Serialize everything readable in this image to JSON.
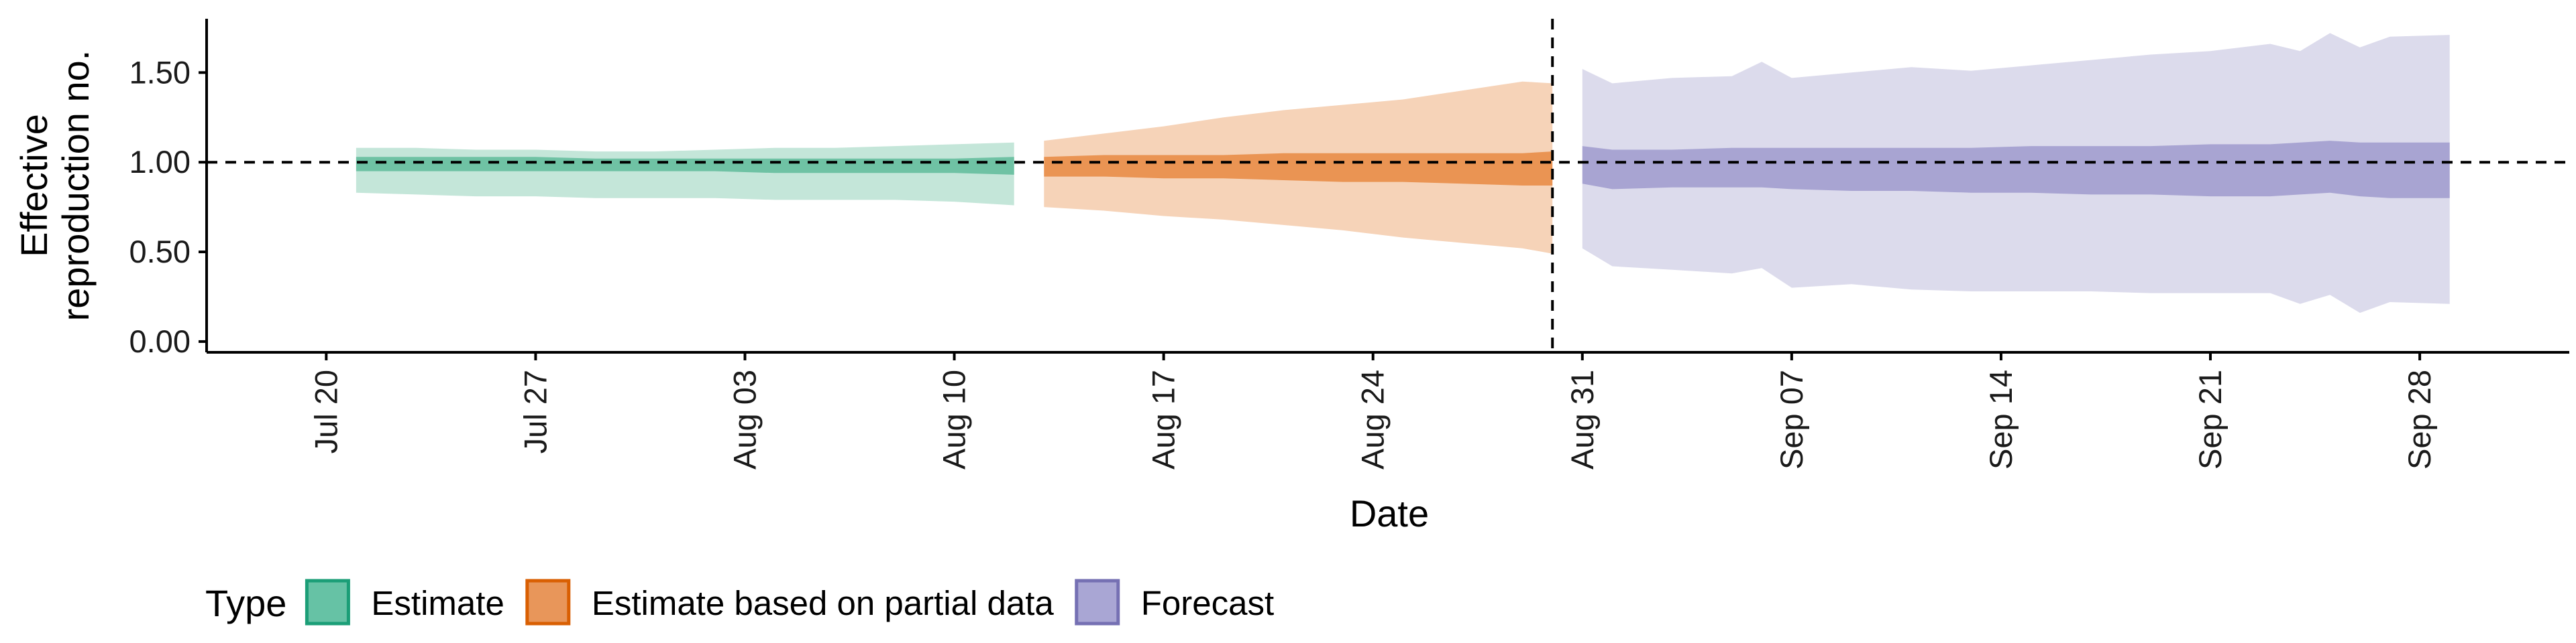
{
  "chart_data": {
    "type": "area",
    "title": "",
    "xlabel": "Date",
    "ylabel": [
      "Effective",
      "reproduction no."
    ],
    "x_type": "date",
    "year": 2020,
    "xlim": [
      "2020-07-16",
      "2020-10-03"
    ],
    "ylim": [
      -0.06,
      1.8
    ],
    "x_ticks": [
      {
        "date": "2020-07-20",
        "label": "Jul 20"
      },
      {
        "date": "2020-07-27",
        "label": "Jul 27"
      },
      {
        "date": "2020-08-03",
        "label": "Aug 03"
      },
      {
        "date": "2020-08-10",
        "label": "Aug 10"
      },
      {
        "date": "2020-08-17",
        "label": "Aug 17"
      },
      {
        "date": "2020-08-24",
        "label": "Aug 24"
      },
      {
        "date": "2020-08-31",
        "label": "Aug 31"
      },
      {
        "date": "2020-09-07",
        "label": "Sep 07"
      },
      {
        "date": "2020-09-14",
        "label": "Sep 14"
      },
      {
        "date": "2020-09-21",
        "label": "Sep 21"
      },
      {
        "date": "2020-09-28",
        "label": "Sep 28"
      }
    ],
    "y_ticks": [
      {
        "value": 0.0,
        "label": "0.00"
      },
      {
        "value": 0.5,
        "label": "0.50"
      },
      {
        "value": 1.0,
        "label": "1.00"
      },
      {
        "value": 1.5,
        "label": "1.50"
      }
    ],
    "reference_lines": {
      "horizontal_y": 1.0,
      "vertical_date": "2020-08-30",
      "style": "dashed"
    },
    "grid": false,
    "legend": {
      "title": "Type",
      "position": "bottom",
      "entries": [
        {
          "label": "Estimate",
          "fill": "#66c2a5",
          "border": "#1b9e77"
        },
        {
          "label": "Estimate based on partial data",
          "fill": "#e8965a",
          "border": "#d95f02"
        },
        {
          "label": "Forecast",
          "fill": "#a9a6d4",
          "border": "#7570b3"
        }
      ]
    },
    "series": [
      {
        "name": "Estimate",
        "outer_color": "#c4e6d9",
        "inner_color": "#6fc2a4",
        "points": [
          [
            "2020-07-21",
            0.83,
            1.08,
            0.95,
            1.03
          ],
          [
            "2020-07-23",
            0.82,
            1.08,
            0.95,
            1.03
          ],
          [
            "2020-07-25",
            0.81,
            1.07,
            0.95,
            1.03
          ],
          [
            "2020-07-27",
            0.81,
            1.07,
            0.95,
            1.03
          ],
          [
            "2020-07-29",
            0.8,
            1.06,
            0.95,
            1.02
          ],
          [
            "2020-07-31",
            0.8,
            1.06,
            0.95,
            1.02
          ],
          [
            "2020-08-02",
            0.8,
            1.07,
            0.95,
            1.02
          ],
          [
            "2020-08-04",
            0.79,
            1.08,
            0.94,
            1.02
          ],
          [
            "2020-08-06",
            0.79,
            1.08,
            0.94,
            1.02
          ],
          [
            "2020-08-08",
            0.79,
            1.09,
            0.94,
            1.02
          ],
          [
            "2020-08-10",
            0.78,
            1.1,
            0.94,
            1.02
          ],
          [
            "2020-08-12",
            0.76,
            1.11,
            0.93,
            1.03
          ]
        ]
      },
      {
        "name": "Estimate based on partial data",
        "outer_color": "#f6d3b8",
        "inner_color": "#ea9453",
        "points": [
          [
            "2020-08-13",
            0.75,
            1.12,
            0.92,
            1.03
          ],
          [
            "2020-08-15",
            0.73,
            1.16,
            0.92,
            1.04
          ],
          [
            "2020-08-17",
            0.7,
            1.2,
            0.91,
            1.04
          ],
          [
            "2020-08-19",
            0.68,
            1.25,
            0.91,
            1.04
          ],
          [
            "2020-08-21",
            0.65,
            1.29,
            0.9,
            1.05
          ],
          [
            "2020-08-23",
            0.62,
            1.32,
            0.89,
            1.05
          ],
          [
            "2020-08-25",
            0.58,
            1.35,
            0.89,
            1.05
          ],
          [
            "2020-08-27",
            0.55,
            1.4,
            0.88,
            1.05
          ],
          [
            "2020-08-29",
            0.52,
            1.45,
            0.87,
            1.05
          ],
          [
            "2020-08-30",
            0.49,
            1.44,
            0.87,
            1.06
          ]
        ]
      },
      {
        "name": "Forecast",
        "outer_color": "#dcdbec",
        "inner_color": "#a8a4d2",
        "points": [
          [
            "2020-08-31",
            0.52,
            1.52,
            0.88,
            1.09
          ],
          [
            "2020-09-01",
            0.42,
            1.44,
            0.85,
            1.07
          ],
          [
            "2020-09-03",
            0.4,
            1.47,
            0.86,
            1.07
          ],
          [
            "2020-09-05",
            0.38,
            1.48,
            0.86,
            1.08
          ],
          [
            "2020-09-06",
            0.41,
            1.56,
            0.86,
            1.08
          ],
          [
            "2020-09-07",
            0.3,
            1.47,
            0.85,
            1.08
          ],
          [
            "2020-09-09",
            0.32,
            1.5,
            0.84,
            1.08
          ],
          [
            "2020-09-11",
            0.29,
            1.53,
            0.84,
            1.08
          ],
          [
            "2020-09-13",
            0.28,
            1.51,
            0.83,
            1.08
          ],
          [
            "2020-09-15",
            0.28,
            1.54,
            0.83,
            1.09
          ],
          [
            "2020-09-17",
            0.28,
            1.57,
            0.82,
            1.09
          ],
          [
            "2020-09-19",
            0.27,
            1.6,
            0.82,
            1.09
          ],
          [
            "2020-09-21",
            0.27,
            1.62,
            0.81,
            1.1
          ],
          [
            "2020-09-23",
            0.27,
            1.66,
            0.81,
            1.1
          ],
          [
            "2020-09-24",
            0.21,
            1.62,
            0.82,
            1.11
          ],
          [
            "2020-09-25",
            0.26,
            1.72,
            0.83,
            1.12
          ],
          [
            "2020-09-26",
            0.16,
            1.64,
            0.81,
            1.11
          ],
          [
            "2020-09-27",
            0.22,
            1.7,
            0.8,
            1.11
          ],
          [
            "2020-09-29",
            0.21,
            1.71,
            0.8,
            1.11
          ]
        ]
      }
    ]
  }
}
